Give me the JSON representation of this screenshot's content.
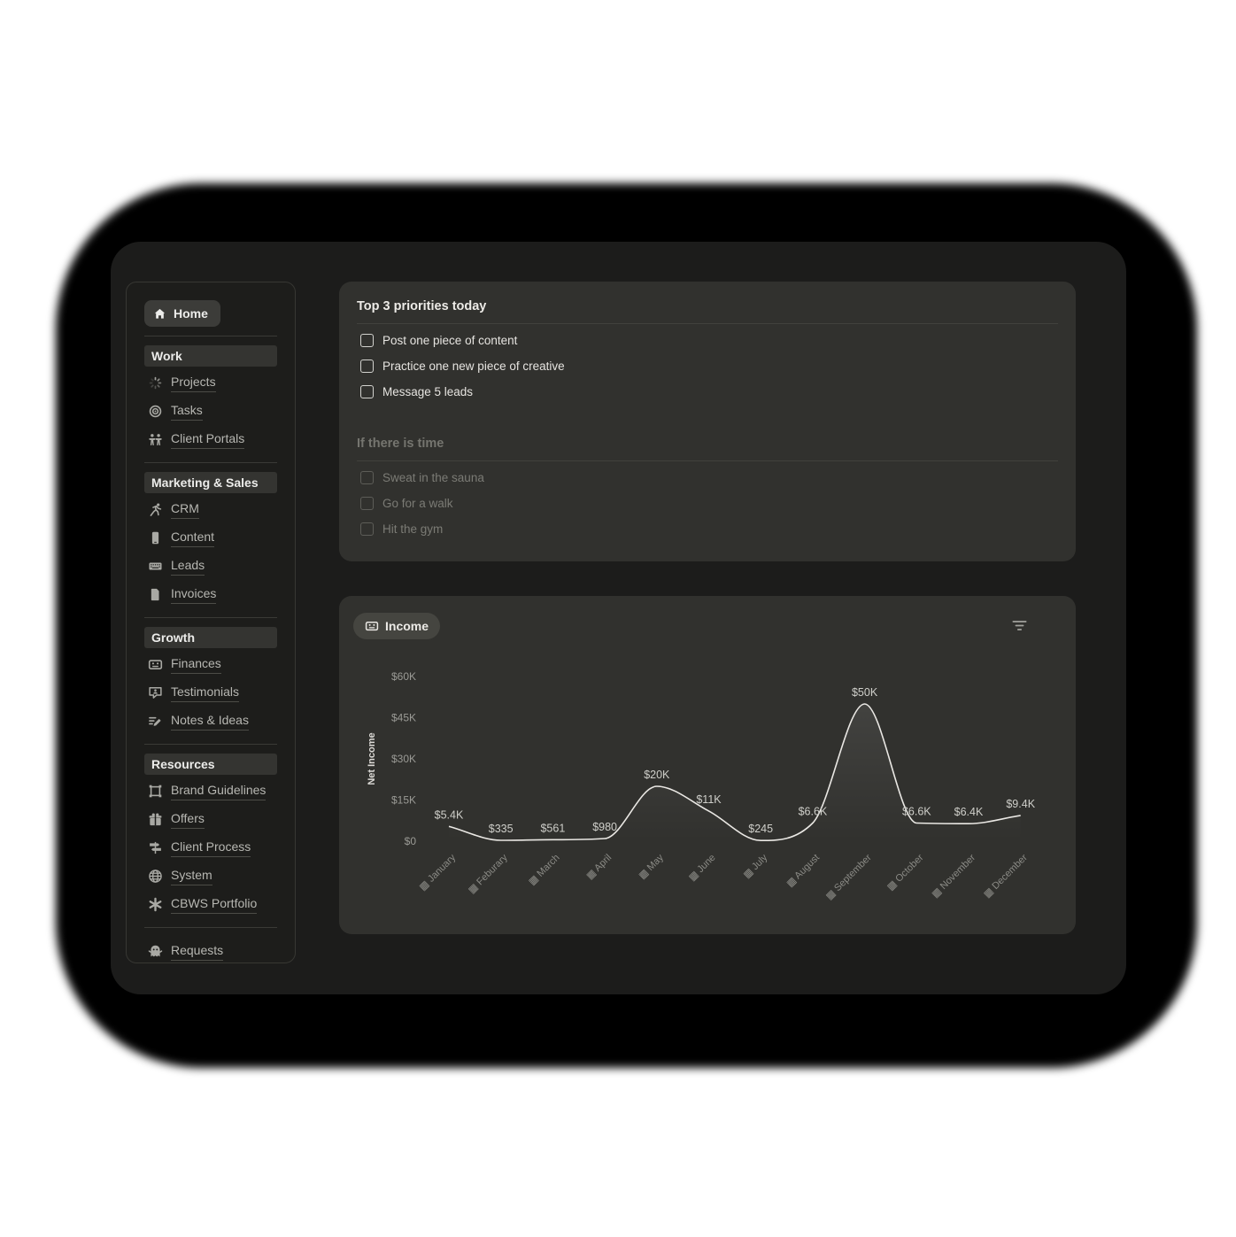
{
  "sidebar": {
    "home": {
      "label": "Home",
      "icon": "home"
    },
    "sections": [
      {
        "title": "Work",
        "items": [
          {
            "label": "Projects",
            "icon": "projects-spinner"
          },
          {
            "label": "Tasks",
            "icon": "target"
          },
          {
            "label": "Client Portals",
            "icon": "people"
          }
        ]
      },
      {
        "title": "Marketing & Sales",
        "items": [
          {
            "label": "CRM",
            "icon": "running-person"
          },
          {
            "label": "Content",
            "icon": "phone"
          },
          {
            "label": "Leads",
            "icon": "keyboard"
          },
          {
            "label": "Invoices",
            "icon": "document"
          }
        ]
      },
      {
        "title": "Growth",
        "items": [
          {
            "label": "Finances",
            "icon": "money-face"
          },
          {
            "label": "Testimonials",
            "icon": "speech-person"
          },
          {
            "label": "Notes & Ideas",
            "icon": "notes-pencil"
          }
        ]
      },
      {
        "title": "Resources",
        "items": [
          {
            "label": "Brand Guidelines",
            "icon": "frame"
          },
          {
            "label": "Offers",
            "icon": "gift"
          },
          {
            "label": "Client Process",
            "icon": "signpost"
          },
          {
            "label": "System",
            "icon": "globe"
          },
          {
            "label": "CBWS Portfolio",
            "icon": "asterisk"
          }
        ]
      }
    ],
    "footer_item": {
      "label": "Requests",
      "icon": "ghost"
    }
  },
  "priorities": {
    "title": "Top 3 priorities today",
    "items": [
      {
        "label": "Post one piece of content",
        "checked": false
      },
      {
        "label": "Practice one new piece of creative",
        "checked": false
      },
      {
        "label": "Message 5 leads",
        "checked": false
      }
    ],
    "secondary_title": "If there is time",
    "secondary_items": [
      {
        "label": "Sweat in the sauna",
        "checked": false
      },
      {
        "label": "Go for a walk",
        "checked": false
      },
      {
        "label": "Hit the gym",
        "checked": false
      }
    ]
  },
  "income": {
    "title": "Income",
    "title_icon": "money-face",
    "filter_icon": "filter"
  },
  "chart_data": {
    "type": "area",
    "title": "Income",
    "ylabel": "Net Income",
    "categories": [
      "January",
      "Feburary",
      "March",
      "April",
      "May",
      "June",
      "July",
      "August",
      "September",
      "October",
      "November",
      "December"
    ],
    "values": [
      5400,
      335,
      561,
      980,
      20000,
      11000,
      245,
      6600,
      50000,
      6600,
      6400,
      9400
    ],
    "point_labels": [
      "$5.4K",
      "$335",
      "$561",
      "$980",
      "$20K",
      "$11K",
      "$245",
      "$6.6K",
      "$50K",
      "$6.6K",
      "$6.4K",
      "$9.4K"
    ],
    "y_tick_values": [
      0,
      15000,
      30000,
      45000,
      60000
    ],
    "y_tick_labels": [
      "$0",
      "$15K",
      "$30K",
      "$45K",
      "$60K"
    ],
    "ylim": [
      0,
      60000
    ],
    "grid": false,
    "legend": false,
    "x_tick_icon": "calendar-icon",
    "line_color": "#eae8e4",
    "area_top_color": "rgba(255,255,255,0.10)",
    "label_color": "#cfcfca",
    "axis_color": "#9a9a95"
  },
  "colors": {
    "page_bg": "#ffffff",
    "window_bg": "#1c1c1b",
    "card_bg": "#31312e",
    "pill_bg": "#454540"
  }
}
